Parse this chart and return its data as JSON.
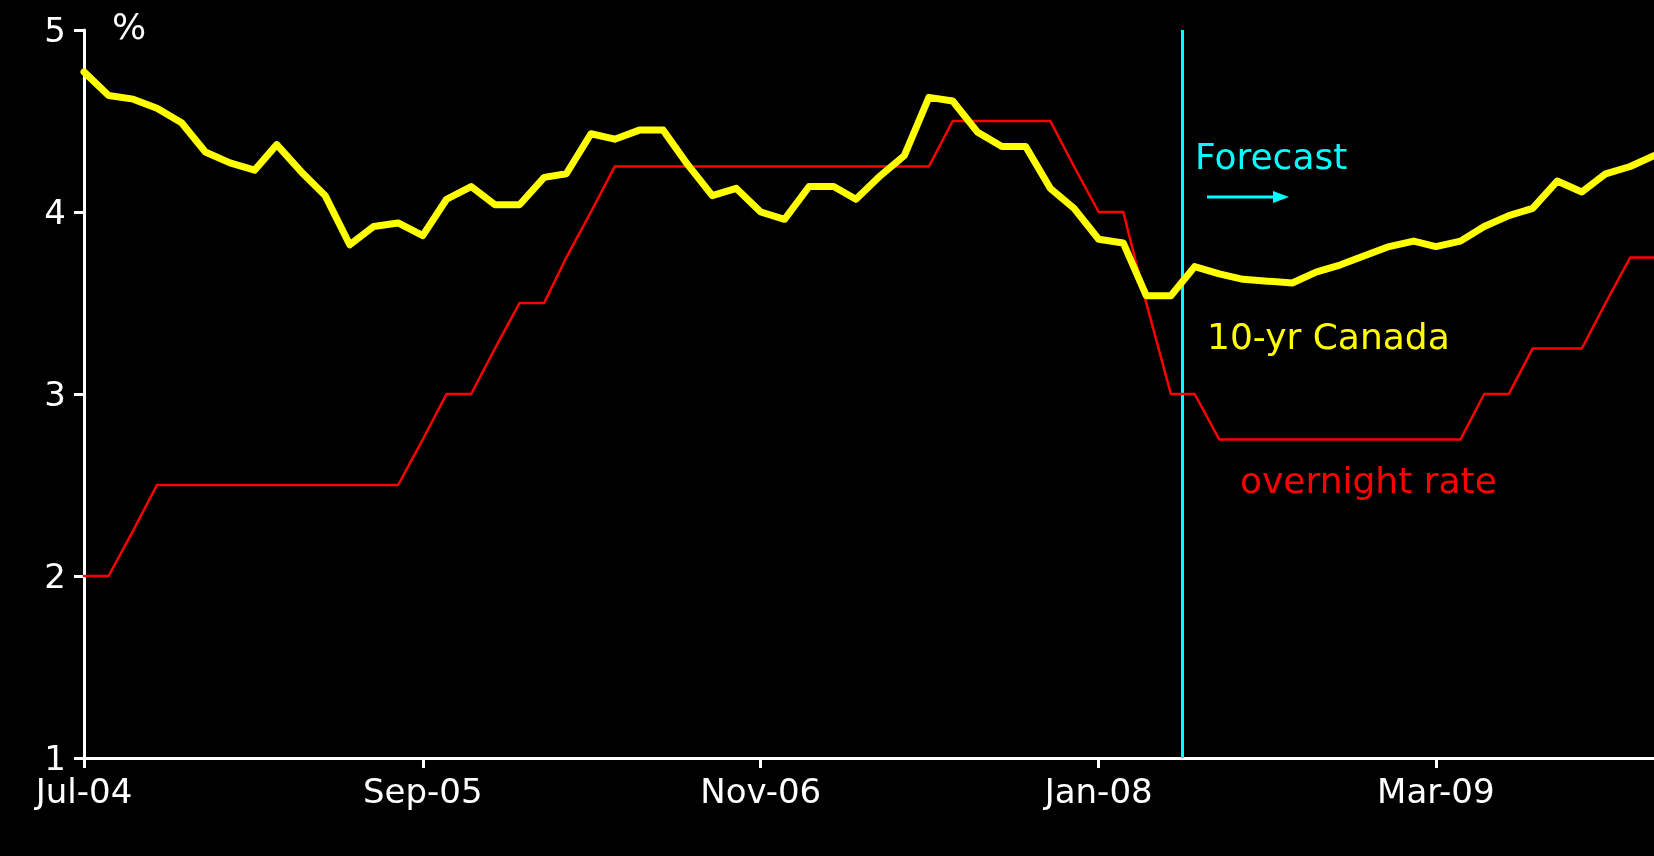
{
  "chart_data": {
    "type": "line",
    "ylabel": "%",
    "x": [
      "2004-07",
      "2004-08",
      "2004-09",
      "2004-10",
      "2004-11",
      "2004-12",
      "2005-01",
      "2005-02",
      "2005-03",
      "2005-04",
      "2005-05",
      "2005-06",
      "2005-07",
      "2005-08",
      "2005-09",
      "2005-10",
      "2005-11",
      "2005-12",
      "2006-01",
      "2006-02",
      "2006-03",
      "2006-04",
      "2006-05",
      "2006-06",
      "2006-07",
      "2006-08",
      "2006-09",
      "2006-10",
      "2006-11",
      "2006-12",
      "2007-01",
      "2007-02",
      "2007-03",
      "2007-04",
      "2007-05",
      "2007-06",
      "2007-07",
      "2007-08",
      "2007-09",
      "2007-10",
      "2007-11",
      "2007-12",
      "2008-01",
      "2008-02",
      "2008-03",
      "2008-04",
      "2008-05",
      "2008-06",
      "2008-07",
      "2008-08",
      "2008-09",
      "2008-10",
      "2008-11",
      "2008-12",
      "2009-01",
      "2009-02",
      "2009-03",
      "2009-04",
      "2009-05",
      "2009-06",
      "2009-07",
      "2009-08",
      "2009-09",
      "2009-10",
      "2009-11",
      "2009-12"
    ],
    "series": [
      {
        "name": "10-yr Canada",
        "color": "#ffff00",
        "values": [
          4.77,
          4.64,
          4.62,
          4.57,
          4.49,
          4.33,
          4.27,
          4.23,
          4.37,
          4.22,
          4.09,
          3.82,
          3.92,
          3.94,
          3.87,
          4.07,
          4.14,
          4.04,
          4.04,
          4.19,
          4.21,
          4.43,
          4.4,
          4.45,
          4.45,
          4.26,
          4.09,
          4.13,
          4.0,
          3.96,
          4.14,
          4.14,
          4.07,
          4.2,
          4.31,
          4.63,
          4.61,
          4.44,
          4.36,
          4.36,
          4.13,
          4.02,
          3.85,
          3.83,
          3.54,
          3.54,
          3.7,
          3.66,
          3.63,
          3.62,
          3.61,
          3.67,
          3.71,
          3.76,
          3.81,
          3.84,
          3.81,
          3.84,
          3.92,
          3.98,
          4.02,
          4.17,
          4.11,
          4.21,
          4.25,
          4.31
        ]
      },
      {
        "name": "overnight rate",
        "color": "#ff0000",
        "values": [
          2.0,
          2.0,
          2.25,
          2.5,
          2.5,
          2.5,
          2.5,
          2.5,
          2.5,
          2.5,
          2.5,
          2.5,
          2.5,
          2.5,
          2.75,
          3.0,
          3.0,
          3.25,
          3.5,
          3.5,
          3.75,
          4.0,
          4.25,
          4.25,
          4.25,
          4.25,
          4.25,
          4.25,
          4.25,
          4.25,
          4.25,
          4.25,
          4.25,
          4.25,
          4.25,
          4.25,
          4.5,
          4.5,
          4.5,
          4.5,
          4.5,
          4.25,
          4.0,
          4.0,
          3.5,
          3.0,
          3.0,
          2.75,
          2.75,
          2.75,
          2.75,
          2.75,
          2.75,
          2.75,
          2.75,
          2.75,
          2.75,
          2.75,
          3.0,
          3.0,
          3.25,
          3.25,
          3.25,
          3.5,
          3.75,
          3.75
        ]
      }
    ],
    "xlim": [
      "2004-07",
      "2009-12"
    ],
    "xticks": [
      {
        "value": "2004-07",
        "label": "Jul-04"
      },
      {
        "value": "2005-09",
        "label": "Sep-05"
      },
      {
        "value": "2006-11",
        "label": "Nov-06"
      },
      {
        "value": "2008-01",
        "label": "Jan-08"
      },
      {
        "value": "2009-03",
        "label": "Mar-09"
      }
    ],
    "ylim": [
      1,
      5
    ],
    "yticks": [
      1,
      2,
      3,
      4,
      5
    ],
    "ref_lines": [
      {
        "axis": "x",
        "value": "2008-04-15",
        "label": "Forecast",
        "color": "#00ffff"
      }
    ],
    "grid": false,
    "legend": false,
    "marker": "none",
    "line_style": "solid"
  }
}
